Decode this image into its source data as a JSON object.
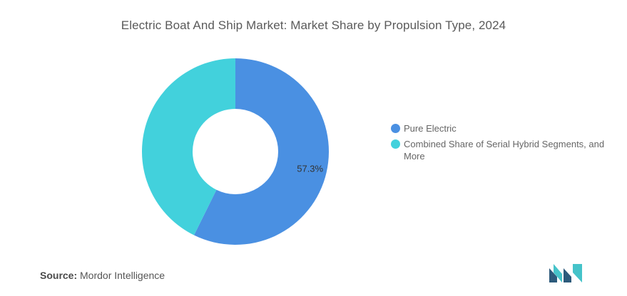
{
  "chart_data": {
    "type": "pie",
    "subtype": "donut",
    "title": "Electric Boat And Ship Market: Market Share by Propulsion Type, 2024",
    "categories": [
      "Pure Electric",
      "Combined Share of Serial Hybrid Segments, and More"
    ],
    "values": [
      57.3,
      42.7
    ],
    "data_labels": [
      "57.3%",
      ""
    ],
    "colors": [
      "#4a90e2",
      "#42d1dc"
    ],
    "legend_position": "right",
    "start_angle_deg": 0
  },
  "source": {
    "prefix": "Source:",
    "text": "Mordor Intelligence"
  },
  "logo": {
    "icon": "mordor-intelligence-logo",
    "colors": [
      "#2d5a7b",
      "#45c3c9"
    ]
  }
}
